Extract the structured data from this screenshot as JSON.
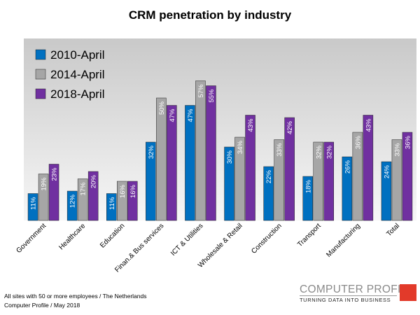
{
  "chart_data": {
    "type": "bar",
    "title": "CRM penetration by industry",
    "categories": [
      "Government",
      "Healthcare",
      "Education",
      "Finan.& Bus services",
      "ICT & Utilities",
      "Wholesale & Retail",
      "Construction",
      "Transport",
      "Manufacturing",
      "Total"
    ],
    "series": [
      {
        "name": "2010-April",
        "color": "#0070c0",
        "values": [
          11,
          12,
          11,
          32,
          47,
          30,
          22,
          18,
          26,
          24
        ],
        "labels": [
          "11%",
          "12%",
          "11%",
          "32%",
          "47%",
          "30%",
          "22%",
          "18%",
          "26%",
          "24%"
        ]
      },
      {
        "name": "2014-April",
        "color": "#a6a6a6",
        "values": [
          19,
          17,
          16,
          50,
          57,
          34,
          33,
          32,
          36,
          33
        ],
        "labels": [
          "19%",
          "17%",
          "16%",
          "50%",
          "57%",
          "34%",
          "33%",
          "32%",
          "36%",
          "33%"
        ]
      },
      {
        "name": "2018-April",
        "color": "#7030a0",
        "values": [
          23,
          20,
          16,
          47,
          55,
          43,
          42,
          32,
          43,
          36
        ],
        "labels": [
          "23%",
          "20%",
          "16%",
          "47%",
          "55%",
          "43%",
          "42%",
          "32%",
          "43%",
          "36%"
        ]
      }
    ],
    "ylim": [
      0,
      70
    ],
    "grid": false,
    "legend_position": "top-left",
    "plot_background": "#e8e8e8"
  },
  "footer": {
    "line1": "All sites with 50 or more employees  / The Netherlands",
    "line2": "Computer Profile / May 2018"
  },
  "logo": {
    "name": "COMPUTER PROFILE",
    "tagline": "TURNING DATA INTO BUSINESS",
    "color": "#e23a2a"
  }
}
